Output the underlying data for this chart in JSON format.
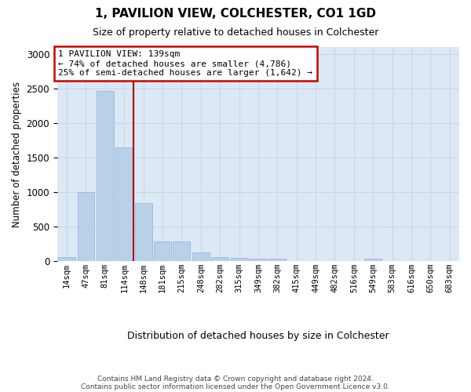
{
  "title": "1, PAVILION VIEW, COLCHESTER, CO1 1GD",
  "subtitle": "Size of property relative to detached houses in Colchester",
  "xlabel": "Distribution of detached houses by size in Colchester",
  "ylabel": "Number of detached properties",
  "categories": [
    "14sqm",
    "47sqm",
    "81sqm",
    "114sqm",
    "148sqm",
    "181sqm",
    "215sqm",
    "248sqm",
    "282sqm",
    "315sqm",
    "349sqm",
    "382sqm",
    "415sqm",
    "449sqm",
    "482sqm",
    "516sqm",
    "549sqm",
    "583sqm",
    "616sqm",
    "650sqm",
    "683sqm"
  ],
  "values": [
    60,
    1000,
    2460,
    1650,
    840,
    280,
    280,
    130,
    55,
    50,
    40,
    30,
    0,
    0,
    0,
    0,
    30,
    0,
    0,
    0,
    0
  ],
  "bar_color": "#b8d0e8",
  "bar_edge_color": "#a0b8d8",
  "grid_color": "#c8d8ec",
  "background_color": "#dce8f4",
  "ylim": [
    0,
    3100
  ],
  "yticks": [
    0,
    500,
    1000,
    1500,
    2000,
    2500,
    3000
  ],
  "vline_color": "#aa0000",
  "vline_x": 3.5,
  "annotation_text": "1 PAVILION VIEW: 139sqm\n← 74% of detached houses are smaller (4,786)\n25% of semi-detached houses are larger (1,642) →",
  "annotation_box_facecolor": "#ffffff",
  "annotation_box_edgecolor": "#cc0000",
  "footer_line1": "Contains HM Land Registry data © Crown copyright and database right 2024.",
  "footer_line2": "Contains public sector information licensed under the Open Government Licence v3.0."
}
